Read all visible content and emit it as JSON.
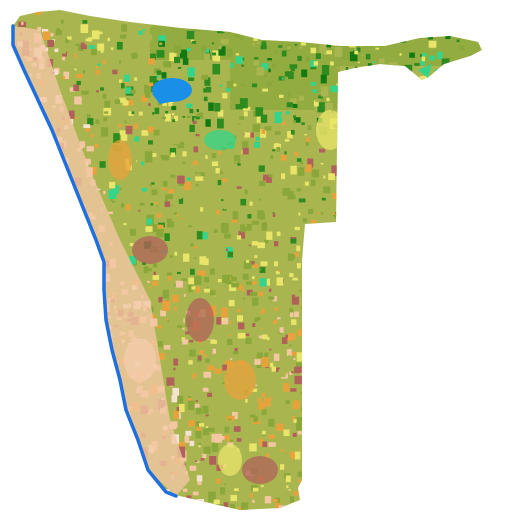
{
  "map": {
    "background_color": "#ffffff",
    "ocean_coast_color": "#1f6fe0",
    "water_color": "#1a8fe8",
    "land_cover_classes": [
      {
        "name": "grassland-savanna",
        "color": "#a9b64f"
      },
      {
        "name": "shrubland",
        "color": "#8aa83a"
      },
      {
        "name": "woodland",
        "color": "#2e8b1f"
      },
      {
        "name": "dense-forest",
        "color": "#137a12"
      },
      {
        "name": "wetland-vegetation",
        "color": "#34d58a"
      },
      {
        "name": "sparse-vegetation",
        "color": "#e9e46a"
      },
      {
        "name": "bare-sand",
        "color": "#f3c7a2"
      },
      {
        "name": "bare-rock",
        "color": "#b0615a"
      },
      {
        "name": "mixed-scrub",
        "color": "#e8a23c"
      },
      {
        "name": "pale-sand",
        "color": "#f5e3d2"
      }
    ]
  }
}
